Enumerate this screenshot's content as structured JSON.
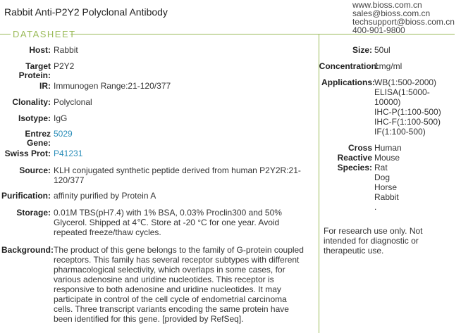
{
  "header": {
    "title": "Rabbit  Anti-P2Y2 Polyclonal Antibody",
    "contact": [
      "www.bioss.com.cn",
      "sales@bioss.com.cn",
      "techsupport@bioss.com.cn",
      "400-901-9800"
    ],
    "section": "DATASHEET"
  },
  "left": {
    "host": {
      "label": "Host:",
      "value": "Rabbit"
    },
    "target": {
      "label1": "Target",
      "label2": "Protein:",
      "value": "P2Y2"
    },
    "ir": {
      "label": "IR:",
      "value": "Immunogen Range:21-120/377"
    },
    "clonality": {
      "label": "Clonality:",
      "value": "Polyclonal"
    },
    "isotype": {
      "label": "Isotype:",
      "value": "IgG"
    },
    "entrez": {
      "label1": "Entrez",
      "label2": "Gene:",
      "value": "5029"
    },
    "swiss": {
      "label": "Swiss Prot:",
      "value": "P41231"
    },
    "source": {
      "label": "Source:",
      "lines": [
        "KLH conjugated synthetic peptide derived from human P2Y2R:21-",
        "120/377"
      ]
    },
    "purification": {
      "label": "Purification:",
      "value": "affinity purified by Protein A"
    },
    "storage": {
      "label": "Storage:",
      "lines": [
        "0.01M TBS(pH7.4) with 1% BSA, 0.03% Proclin300 and 50%",
        "Glycerol. Shipped at 4℃. Store at -20 °C for one year. Avoid",
        "repeated freeze/thaw cycles."
      ]
    },
    "background": {
      "label": "Background:",
      "lines": [
        "The product of this gene belongs to the family of G-protein coupled",
        "receptors. This family has several receptor subtypes with different",
        "pharmacological selectivity, which overlaps in some cases, for",
        "various adenosine and uridine nucleotides. This receptor is",
        "responsive to both adenosine and uridine nucleotides. It may",
        "participate in control of the cell cycle of endometrial carcinoma",
        "cells. Three transcript variants encoding the same protein have",
        "been identified for this gene. [provided by RefSeq]."
      ]
    }
  },
  "right": {
    "size": {
      "label": "Size:",
      "value": "50ul"
    },
    "concentration": {
      "label": "Concentration:",
      "value": "1mg/ml"
    },
    "applications": {
      "label": "Applications:",
      "lines": [
        "WB(1:500-2000)",
        "ELISA(1:5000-",
        "10000)",
        "IHC-P(1:100-500)",
        "IHC-F(1:100-500)",
        "IF(1:100-500)"
      ]
    },
    "species": {
      "label1": "Cross",
      "label2": "Reactive",
      "label3": "Species:",
      "lines": [
        "Human",
        "Mouse",
        "Rat",
        "Dog",
        "Horse",
        "Rabbit",
        "."
      ]
    },
    "disclaimer": [
      "For research use only. Not",
      "intended for diagnostic or",
      "therapeutic use."
    ]
  },
  "colors": {
    "accent": "#9bbb59",
    "link": "#2a8db8"
  }
}
